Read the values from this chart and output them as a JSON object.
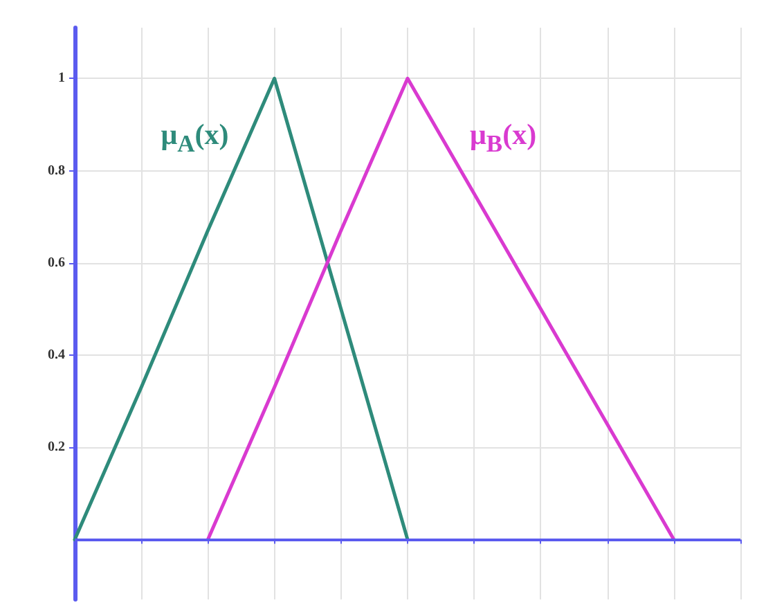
{
  "chart_data": {
    "type": "line",
    "categories": [
      null,
      null,
      null,
      null,
      null,
      null,
      null,
      null,
      null,
      null,
      null
    ],
    "series": [
      {
        "name": "μ$_{A}$(x)",
        "color": "#2e8b7b",
        "values": [
          0,
          0.33,
          0.67,
          1,
          0.5,
          0,
          null,
          null,
          null,
          null,
          null
        ]
      },
      {
        "name": "μ$_{B}$(x)",
        "color": "#d93ad0",
        "values": [
          null,
          null,
          0,
          0.33,
          0.67,
          1,
          0.75,
          0.5,
          0.25,
          0,
          null
        ]
      }
    ],
    "ylim": [
      -0.13,
      1.11
    ],
    "yticks": [
      0.2,
      0.4,
      0.6,
      0.8,
      1
    ],
    "grid": true,
    "tick_labels": "y",
    "ref_lines": [
      {
        "axis": "y",
        "value": 0,
        "color": "#5b5bef"
      }
    ]
  }
}
